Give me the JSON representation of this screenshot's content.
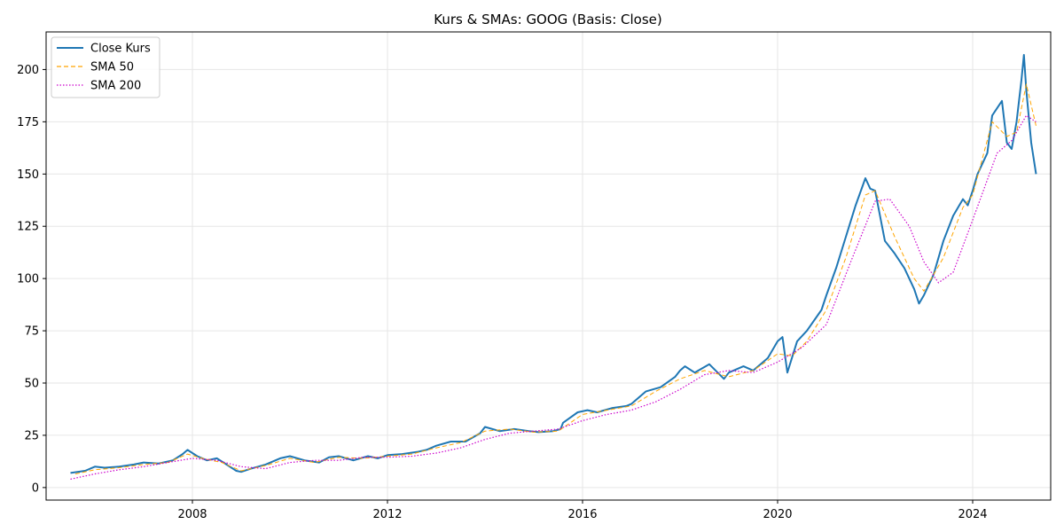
{
  "chart_data": {
    "type": "line",
    "title": "Kurs & SMAs: GOOG (Basis: Close)",
    "xlabel": "",
    "ylabel": "",
    "xlim": [
      2005.0,
      2025.6
    ],
    "ylim": [
      -6,
      218
    ],
    "x_ticks": [
      {
        "value": 2008,
        "label": "2008"
      },
      {
        "value": 2012,
        "label": "2012"
      },
      {
        "value": 2016,
        "label": "2016"
      },
      {
        "value": 2020,
        "label": "2020"
      },
      {
        "value": 2024,
        "label": "2024"
      }
    ],
    "y_ticks": [
      {
        "value": 0,
        "label": "0"
      },
      {
        "value": 25,
        "label": "25"
      },
      {
        "value": 50,
        "label": "50"
      },
      {
        "value": 75,
        "label": "75"
      },
      {
        "value": 100,
        "label": "100"
      },
      {
        "value": 125,
        "label": "125"
      },
      {
        "value": 150,
        "label": "150"
      },
      {
        "value": 175,
        "label": "175"
      },
      {
        "value": 200,
        "label": "200"
      }
    ],
    "grid": true,
    "legend_position": "upper-left",
    "series": [
      {
        "name": "Close Kurs",
        "color": "#1f77b4",
        "style": "solid",
        "x": [
          2005.5,
          2005.8,
          2006.0,
          2006.2,
          2006.5,
          2006.8,
          2007.0,
          2007.3,
          2007.6,
          2007.8,
          2007.9,
          2008.1,
          2008.3,
          2008.5,
          2008.7,
          2008.9,
          2009.0,
          2009.2,
          2009.5,
          2009.8,
          2010.0,
          2010.3,
          2010.6,
          2010.8,
          2011.0,
          2011.3,
          2011.6,
          2011.8,
          2012.0,
          2012.3,
          2012.6,
          2012.8,
          2013.0,
          2013.3,
          2013.6,
          2013.9,
          2014.0,
          2014.3,
          2014.6,
          2014.9,
          2015.1,
          2015.4,
          2015.55,
          2015.6,
          2015.9,
          2016.1,
          2016.3,
          2016.6,
          2016.9,
          2017.0,
          2017.3,
          2017.6,
          2017.9,
          2018.0,
          2018.1,
          2018.3,
          2018.6,
          2018.9,
          2019.0,
          2019.3,
          2019.5,
          2019.8,
          2020.0,
          2020.1,
          2020.2,
          2020.4,
          2020.6,
          2020.9,
          2021.0,
          2021.2,
          2021.4,
          2021.6,
          2021.8,
          2021.9,
          2022.0,
          2022.2,
          2022.4,
          2022.6,
          2022.8,
          2022.9,
          2023.0,
          2023.2,
          2023.4,
          2023.6,
          2023.8,
          2023.9,
          2024.0,
          2024.1,
          2024.3,
          2024.4,
          2024.6,
          2024.7,
          2024.8,
          2024.9,
          2025.0,
          2025.05,
          2025.1,
          2025.2,
          2025.3
        ],
        "values": [
          7,
          8,
          10,
          9.5,
          10,
          11,
          12,
          11.5,
          13,
          16,
          18,
          15,
          13,
          14,
          11,
          8,
          7.5,
          9,
          11,
          14,
          15,
          13,
          12,
          14.5,
          15,
          13,
          15,
          14,
          15.5,
          16,
          17,
          18,
          20,
          22,
          22,
          26,
          29,
          27,
          28,
          27,
          26.5,
          27,
          28,
          31,
          36,
          37,
          36,
          38,
          39,
          40,
          46,
          48,
          53,
          56,
          58,
          55,
          59,
          52,
          55,
          58,
          56,
          62,
          70,
          72,
          55,
          70,
          75,
          85,
          92,
          105,
          120,
          135,
          148,
          143,
          142,
          118,
          112,
          105,
          95,
          88,
          92,
          102,
          118,
          130,
          138,
          135,
          142,
          150,
          160,
          178,
          185,
          165,
          162,
          175,
          195,
          207,
          190,
          165,
          150
        ]
      },
      {
        "name": "SMA 50",
        "color": "#ffa500",
        "style": "dashed",
        "x": [
          2005.6,
          2006.0,
          2006.5,
          2007.0,
          2007.5,
          2007.9,
          2008.2,
          2008.6,
          2009.0,
          2009.5,
          2010.0,
          2010.5,
          2011.0,
          2011.5,
          2012.0,
          2012.5,
          2013.0,
          2013.5,
          2014.0,
          2014.5,
          2015.0,
          2015.5,
          2016.0,
          2016.5,
          2017.0,
          2017.5,
          2018.0,
          2018.5,
          2019.0,
          2019.5,
          2020.0,
          2020.3,
          2020.6,
          2021.0,
          2021.4,
          2021.8,
          2022.0,
          2022.4,
          2022.8,
          2023.0,
          2023.4,
          2023.8,
          2024.0,
          2024.4,
          2024.7,
          2024.9,
          2025.1,
          2025.3
        ],
        "values": [
          6.5,
          8.5,
          9.5,
          11,
          12,
          16,
          14,
          12,
          8,
          10.5,
          14,
          12,
          14.5,
          14,
          15,
          16,
          19,
          21.5,
          27,
          28,
          26.5,
          27,
          35,
          37,
          39,
          46,
          52,
          56,
          53,
          56,
          64,
          63,
          70,
          85,
          110,
          140,
          142,
          120,
          100,
          94,
          110,
          134,
          140,
          175,
          168,
          170,
          193,
          173
        ]
      },
      {
        "name": "SMA 200",
        "color": "#cc00cc",
        "style": "dotted",
        "x": [
          2005.5,
          2006.0,
          2006.5,
          2007.0,
          2007.5,
          2008.0,
          2008.5,
          2009.0,
          2009.5,
          2010.0,
          2010.5,
          2011.0,
          2011.5,
          2012.0,
          2012.5,
          2013.0,
          2013.5,
          2014.0,
          2014.5,
          2015.0,
          2015.5,
          2016.0,
          2016.5,
          2017.0,
          2017.5,
          2018.0,
          2018.5,
          2019.0,
          2019.5,
          2020.0,
          2020.5,
          2021.0,
          2021.5,
          2022.0,
          2022.3,
          2022.7,
          2023.0,
          2023.3,
          2023.6,
          2024.0,
          2024.5,
          2024.8,
          2025.1,
          2025.3
        ],
        "values": [
          4,
          6.5,
          8.5,
          10,
          12,
          14,
          13,
          10,
          9,
          12,
          13,
          13,
          14.5,
          14.5,
          15,
          16.5,
          19,
          23,
          26,
          27,
          28,
          32,
          35,
          37,
          41,
          47,
          54,
          56,
          55,
          60,
          67,
          78,
          108,
          137,
          138,
          125,
          108,
          98,
          103,
          128,
          160,
          166,
          178,
          175
        ]
      }
    ]
  }
}
